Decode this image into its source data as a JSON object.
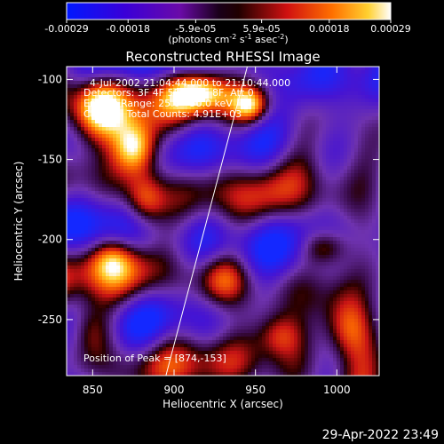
{
  "chart_data": {
    "type": "heatmap",
    "title": "Reconstructed RHESSI Image",
    "xlabel": "Heliocentric X (arcsec)",
    "ylabel": "Heliocentric Y (arcsec)",
    "xlim": [
      834,
      1026
    ],
    "ylim": [
      -285,
      -92
    ],
    "x_ticks": [
      850,
      900,
      950,
      1000
    ],
    "y_ticks": [
      -100,
      -150,
      -200,
      -250
    ],
    "colorbar": {
      "range": [
        -0.00029,
        0.00029
      ],
      "tick_labels": [
        "-0.00029",
        "-0.00018",
        "-5.9e-05",
        "5.9e-05",
        "0.00018",
        "0.00029"
      ],
      "tick_values": [
        -0.00029,
        -0.00018,
        -5.9e-05,
        5.9e-05,
        0.00018,
        0.00029
      ],
      "label_main": "(photons cm",
      "label_sup1": "-2",
      "label_mid1": " s",
      "label_sup2": "-1",
      "label_mid2": " asec",
      "label_sup3": "-2",
      "label_end": ")"
    },
    "annotations": {
      "time": "4-Jul-2002 21:04:44.000 to 21:10:44.000",
      "detectors": "Detectors: 3F 4F 5F 6F 7F 8F, Att 0",
      "energy": "Energy Range: 25.0 - 50.0 keV",
      "clean": "Clean     Total Counts: 4.91E+03",
      "peak": "Position of Peak = [874,-153]"
    },
    "limb_line": {
      "x": [
        895,
        945
      ],
      "y": [
        -285,
        -92
      ]
    },
    "bright_regions": [
      {
        "x": 876,
        "y": -143,
        "sx": 10,
        "sy": 12,
        "amp": 1.0
      },
      {
        "x": 852,
        "y": -118,
        "sx": 12,
        "sy": 14,
        "amp": 0.75
      },
      {
        "x": 882,
        "y": -176,
        "sx": 9,
        "sy": 12,
        "amp": 0.7
      },
      {
        "x": 862,
        "y": -212,
        "sx": 10,
        "sy": 10,
        "amp": 0.55
      },
      {
        "x": 915,
        "y": -108,
        "sx": 14,
        "sy": 9,
        "amp": 0.75
      },
      {
        "x": 947,
        "y": -116,
        "sx": 8,
        "sy": 8,
        "amp": 0.7
      },
      {
        "x": 930,
        "y": -225,
        "sx": 11,
        "sy": 12,
        "amp": 0.55
      },
      {
        "x": 848,
        "y": -255,
        "sx": 10,
        "sy": 12,
        "amp": 0.5
      },
      {
        "x": 1008,
        "y": -257,
        "sx": 11,
        "sy": 15,
        "amp": 0.85
      },
      {
        "x": 992,
        "y": -205,
        "sx": 10,
        "sy": 8,
        "amp": 0.55
      },
      {
        "x": 965,
        "y": -260,
        "sx": 10,
        "sy": 10,
        "amp": 0.5
      }
    ]
  },
  "footer": {
    "timestamp": "29-Apr-2022 23:49"
  }
}
